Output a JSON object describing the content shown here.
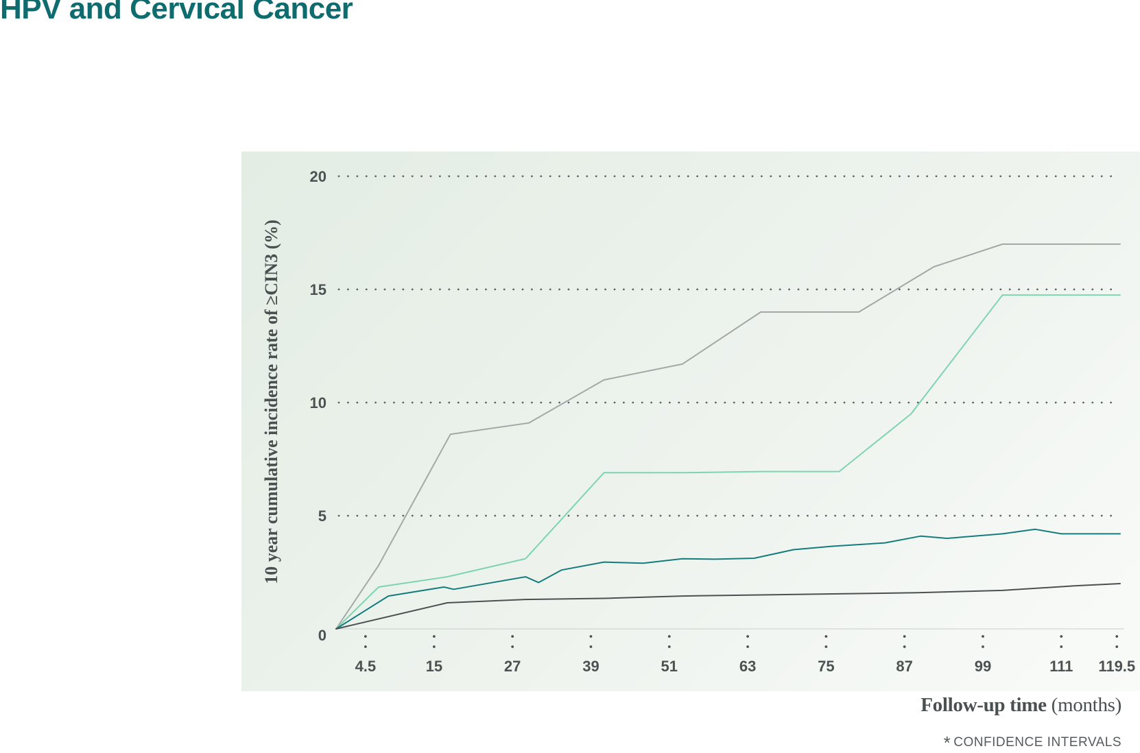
{
  "page": {
    "title": "HPV and Cervical Cancer",
    "title_color": "#0e6b6e",
    "footnote_star": "*",
    "footnote": "CONFIDENCE INTERVALS"
  },
  "chart_data": {
    "type": "line",
    "title": "HPV and Cervical Cancer",
    "ylabel": "10 year cumulative incidence rate of ≥CIN3 (%)",
    "xlabel": "Follow-up time (months)",
    "xlabel_bold": "Follow-up time",
    "xlabel_unit": "(months)",
    "x_ticks": [
      "4.5",
      "15",
      "27",
      "39",
      "51",
      "63",
      "75",
      "87",
      "99",
      "111",
      "119.5"
    ],
    "y_ticks": [
      "0",
      "5",
      "10",
      "15",
      "20"
    ],
    "ylim": [
      0,
      20
    ],
    "xlim": [
      0,
      120
    ],
    "grid": "dotted horizontal",
    "legend": "none",
    "series": [
      {
        "color": "#a4a9a8",
        "x": [
          0,
          6.5,
          17.5,
          29.5,
          41,
          53,
          65,
          80,
          91.5,
          102,
          120
        ],
        "y": [
          0,
          2.8,
          8.6,
          9.1,
          11.0,
          11.7,
          14.0,
          14.0,
          16.0,
          17.0,
          17.0
        ]
      },
      {
        "color": "#7ed4b0",
        "x": [
          0,
          6.5,
          17,
          29,
          41,
          53,
          65,
          77,
          88,
          102,
          120
        ],
        "y": [
          0,
          1.85,
          2.3,
          3.1,
          6.9,
          6.9,
          6.95,
          6.95,
          9.5,
          14.75,
          14.75
        ]
      },
      {
        "color": "#147c7b",
        "x": [
          0,
          8,
          16.5,
          18,
          29,
          31,
          34.5,
          41,
          47,
          53,
          58,
          64,
          70,
          76,
          84,
          89.5,
          93.5,
          102,
          107,
          111,
          120
        ],
        "y": [
          0,
          1.45,
          1.85,
          1.75,
          2.3,
          2.05,
          2.6,
          2.95,
          2.9,
          3.1,
          3.08,
          3.12,
          3.5,
          3.65,
          3.8,
          4.1,
          4.0,
          4.2,
          4.4,
          4.2,
          4.2
        ]
      },
      {
        "color": "#4b5051",
        "x": [
          0,
          17,
          29,
          41,
          53,
          65,
          77,
          89,
          102,
          113,
          120
        ],
        "y": [
          0,
          1.15,
          1.3,
          1.35,
          1.45,
          1.5,
          1.55,
          1.6,
          1.7,
          1.9,
          2.0
        ]
      }
    ]
  }
}
